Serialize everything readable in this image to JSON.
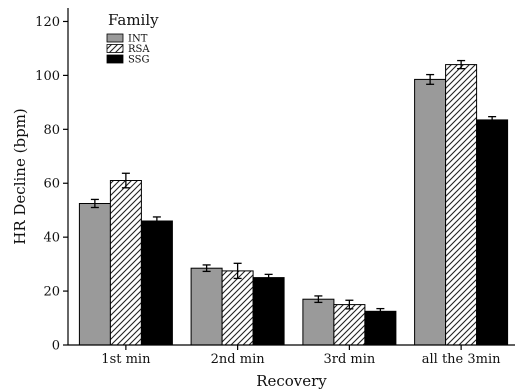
{
  "chart_data": {
    "type": "bar",
    "title": "",
    "xlabel": "Recovery",
    "ylabel": "HR Decline (bpm)",
    "ylim": [
      0,
      125
    ],
    "yticks": [
      0,
      20,
      40,
      60,
      80,
      100,
      120
    ],
    "categories": [
      "1st min",
      "2nd min",
      "3rd min",
      "all the 3min"
    ],
    "legend": {
      "title": "Family",
      "placement": "top-left"
    },
    "grid": false,
    "series": [
      {
        "name": "INT",
        "values": [
          52.5,
          28.5,
          17.0,
          98.5
        ],
        "errors": [
          1.5,
          1.2,
          1.2,
          1.8
        ],
        "fill": "gray",
        "color": "#9a9a9a"
      },
      {
        "name": "RSA",
        "values": [
          61.0,
          27.5,
          15.0,
          104.0
        ],
        "errors": [
          2.7,
          2.8,
          1.6,
          1.5
        ],
        "fill": "hatched",
        "color": "#ffffff"
      },
      {
        "name": "SSG",
        "values": [
          46.0,
          25.0,
          12.5,
          83.5
        ],
        "errors": [
          1.5,
          1.2,
          1.0,
          1.2
        ],
        "fill": "solid",
        "color": "#000000"
      }
    ]
  }
}
